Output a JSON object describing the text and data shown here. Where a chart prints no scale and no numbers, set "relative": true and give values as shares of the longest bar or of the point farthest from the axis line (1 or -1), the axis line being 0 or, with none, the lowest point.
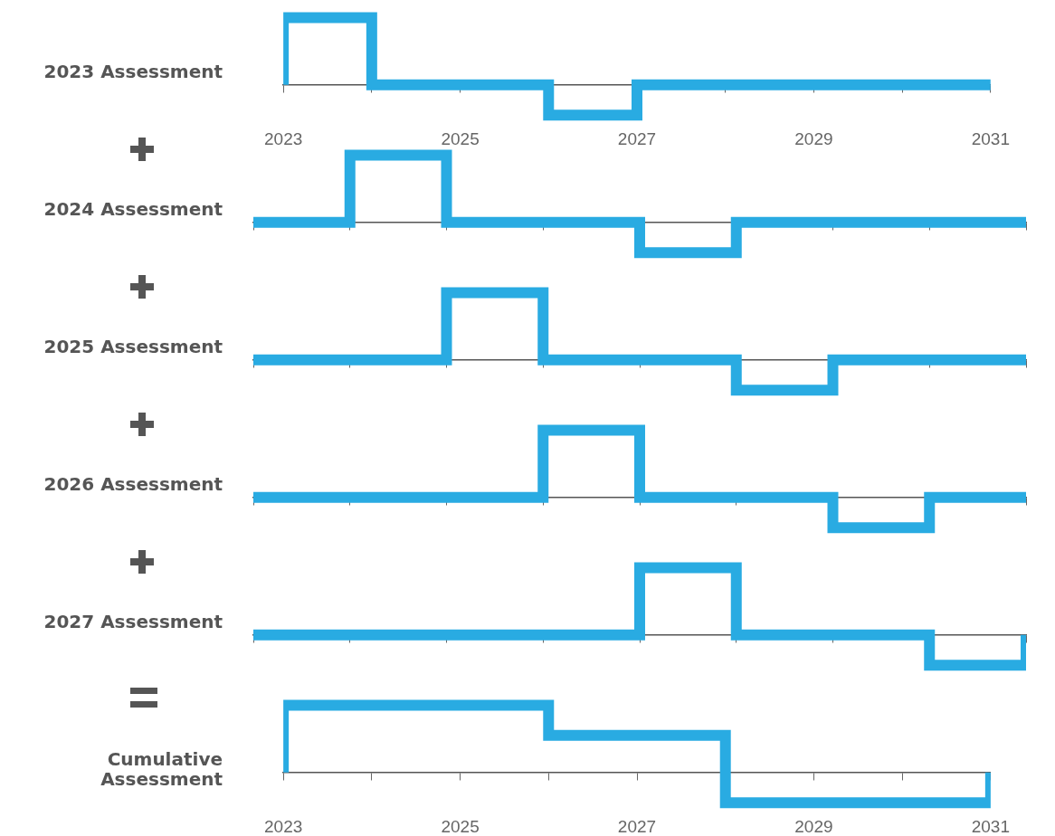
{
  "chart_data": [
    {
      "type": "step",
      "ylabel": "2023 Assessment",
      "relative": true,
      "x": [
        2023,
        2023,
        2024,
        2025,
        2026,
        2027,
        2028,
        2029,
        2030,
        2031
      ],
      "series": [
        {
          "color": "#29abe2",
          "values": [
            0,
            1,
            0,
            0,
            -0.45,
            0,
            0,
            0,
            0,
            0
          ]
        }
      ],
      "xlim": [
        2023,
        2031
      ],
      "xticks": [
        {
          "value": 2023,
          "label": "2023"
        },
        {
          "value": 2024,
          "label": null
        },
        {
          "value": 2025,
          "label": "2025"
        },
        {
          "value": 2026,
          "label": null
        },
        {
          "value": 2027,
          "label": "2027"
        },
        {
          "value": 2028,
          "label": null
        },
        {
          "value": 2029,
          "label": "2029"
        },
        {
          "value": 2030,
          "label": null
        },
        {
          "value": 2031,
          "label": "2031"
        }
      ],
      "grid": false,
      "legend": false
    },
    {
      "type": "step",
      "ylabel": "2024 Assessment",
      "relative": true,
      "categories": [
        null,
        null,
        null,
        null,
        null,
        null,
        null,
        null,
        null
      ],
      "series": [
        {
          "color": "#29abe2",
          "values": [
            0,
            1,
            0,
            0,
            -0.45,
            0,
            0,
            0,
            0
          ]
        }
      ],
      "tick_labels": false,
      "grid": false,
      "legend": false
    },
    {
      "type": "step",
      "ylabel": "2025 Assessment",
      "relative": true,
      "categories": [
        null,
        null,
        null,
        null,
        null,
        null,
        null,
        null,
        null
      ],
      "series": [
        {
          "color": "#29abe2",
          "values": [
            0,
            0,
            1,
            0,
            0,
            -0.45,
            0,
            0,
            0
          ]
        }
      ],
      "tick_labels": false,
      "grid": false,
      "legend": false
    },
    {
      "type": "step",
      "ylabel": "2026 Assessment",
      "relative": true,
      "categories": [
        null,
        null,
        null,
        null,
        null,
        null,
        null,
        null,
        null
      ],
      "series": [
        {
          "color": "#29abe2",
          "values": [
            0,
            0,
            0,
            1,
            0,
            0,
            -0.45,
            0,
            0
          ]
        }
      ],
      "tick_labels": false,
      "grid": false,
      "legend": false
    },
    {
      "type": "step",
      "ylabel": "2027 Assessment",
      "relative": true,
      "categories": [
        null,
        null,
        null,
        null,
        null,
        null,
        null,
        null,
        null
      ],
      "series": [
        {
          "color": "#29abe2",
          "values": [
            0,
            0,
            0,
            0,
            1,
            0,
            0,
            -0.45,
            0
          ]
        }
      ],
      "tick_labels": false,
      "grid": false,
      "legend": false
    },
    {
      "type": "step",
      "ylabel": "Cumulative Assessment",
      "relative": true,
      "x": [
        2023,
        2023,
        2024,
        2025,
        2026,
        2027,
        2028,
        2029,
        2030,
        2031
      ],
      "series": [
        {
          "color": "#29abe2",
          "values": [
            0,
            1,
            1,
            1,
            0.55,
            0.55,
            -0.45,
            -0.45,
            -0.45,
            0
          ]
        }
      ],
      "xlim": [
        2023,
        2031
      ],
      "xticks": [
        {
          "value": 2023,
          "label": "2023"
        },
        {
          "value": 2024,
          "label": null
        },
        {
          "value": 2025,
          "label": "2025"
        },
        {
          "value": 2026,
          "label": null
        },
        {
          "value": 2027,
          "label": "2027"
        },
        {
          "value": 2028,
          "label": null
        },
        {
          "value": 2029,
          "label": "2029"
        },
        {
          "value": 2030,
          "label": null
        },
        {
          "value": 2031,
          "label": "2031"
        }
      ],
      "grid": false,
      "legend": false
    }
  ]
}
